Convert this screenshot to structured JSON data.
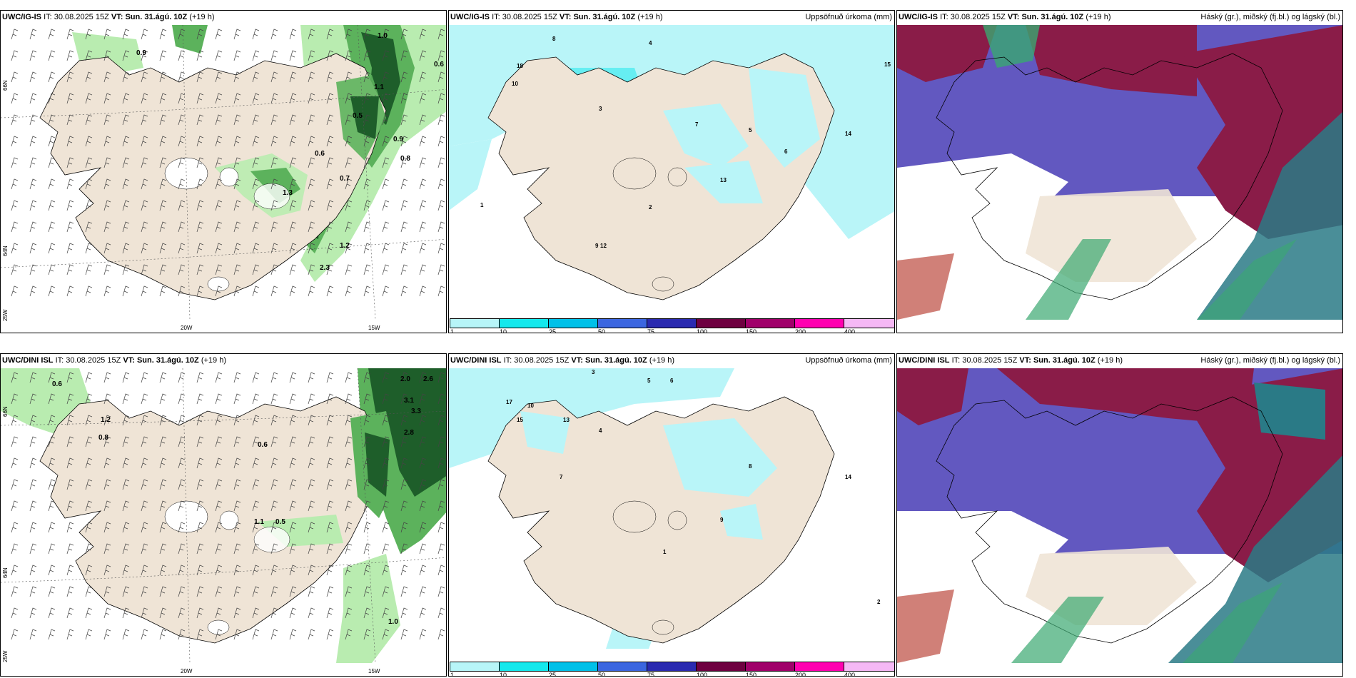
{
  "rows": [
    {
      "model_bold": "UWC/IG-IS",
      "it_label": "IT:",
      "it_value": "30.08.2025 15Z",
      "vt_label": "VT:",
      "vt_value": "Sun. 31.ágú. 10Z",
      "lead": "(+19 h)",
      "precip_title": "Uppsöfnuð úrkoma (mm)",
      "cloud_title": "Háský (gr.), miðský (fj.bl.) og lágský (bl.)",
      "wind_values": [
        "1.0",
        "0.9",
        "0.6",
        "0.7",
        "0.5",
        "1.1",
        "0.8",
        "1.3",
        "1.2",
        "0.9",
        "2.3"
      ],
      "precip_values": [
        "8",
        "4",
        "3",
        "12",
        "18",
        "10",
        "7",
        "5",
        "6",
        "2",
        "13",
        "15",
        "1",
        "9",
        "14"
      ]
    },
    {
      "model_bold": "UWC/DINI ISL",
      "it_label": "IT:",
      "it_value": "30.08.2025 15Z",
      "vt_label": "VT:",
      "vt_value": "Sun. 31.ágú. 10Z",
      "lead": "(+19 h)",
      "precip_title": "Uppsöfnuð úrkoma (mm)",
      "cloud_title": "Háský (gr.), miðský (fj.bl.) og lágský (bl.)",
      "wind_values": [
        "2.0",
        "2.6",
        "3.1",
        "3.3",
        "2.8",
        "0.6",
        "1.2",
        "0.8",
        "0.5",
        "1.1",
        "1.0"
      ],
      "precip_values": [
        "3",
        "5",
        "6",
        "4",
        "2",
        "15",
        "17",
        "10",
        "13",
        "7",
        "9",
        "1",
        "8",
        "14"
      ]
    }
  ],
  "axes": {
    "lon_labels": [
      "20W",
      "15W"
    ],
    "lat_labels": [
      "66N",
      "64N"
    ],
    "lon_left": "25W"
  },
  "colorbar": {
    "ticks": [
      "1",
      "10",
      "25",
      "50",
      "75",
      "100",
      "150",
      "200",
      "400"
    ],
    "colors": [
      "#b7f5f8",
      "#14e8ec",
      "#00c0e8",
      "#3b66e0",
      "#2a2ab0",
      "#6e0040",
      "#a0006a",
      "#ff00b0",
      "#f5b8f5"
    ]
  },
  "colors": {
    "land": "#efe4d6",
    "sea_precip": "#b9f5f8",
    "green_light": "#b9ecb0",
    "green_mid": "#5cb25c",
    "green_dark": "#1e5e2a",
    "cloud_high": "#8a1c48",
    "cloud_mid": "#6258c0",
    "cloud_low": "#2a7a86"
  }
}
